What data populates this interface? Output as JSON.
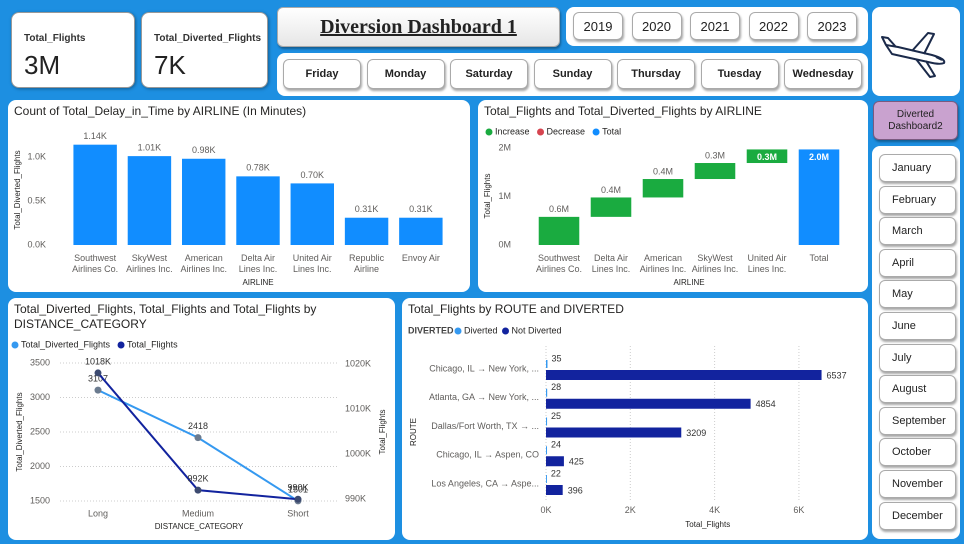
{
  "cards": [
    {
      "label": "Total_Flights",
      "value": "3M"
    },
    {
      "label": "Total_Diverted_Flights",
      "value": "7K"
    }
  ],
  "header": {
    "title": "Diversion Dashboard 1"
  },
  "years": [
    "2019",
    "2020",
    "2021",
    "2022",
    "2023"
  ],
  "weekdays": [
    "Friday",
    "Monday",
    "Saturday",
    "Sunday",
    "Thursday",
    "Tuesday",
    "Wednesday"
  ],
  "nav_button": "Diverted Dashboard2",
  "months": [
    "January",
    "February",
    "March",
    "April",
    "May",
    "June",
    "July",
    "August",
    "September",
    "October",
    "November",
    "December"
  ],
  "chart_data": [
    {
      "type": "bar",
      "title": "Count of Total_Delay_in_Time by AIRLINE (In Minutes)",
      "x_label": "AIRLINE",
      "y_label": "Total_Diverted_Flights",
      "categories": [
        "Southwest Airlines Co.",
        "SkyWest Airlines Inc.",
        "American Airlines Inc.",
        "Delta Air Lines Inc.",
        "United Air Lines Inc.",
        "Republic Airline",
        "Envoy Air"
      ],
      "values": [
        1140,
        1010,
        980,
        780,
        700,
        310,
        310
      ],
      "value_labels": [
        "1.14K",
        "1.01K",
        "0.98K",
        "0.78K",
        "0.70K",
        "0.31K",
        "0.31K"
      ],
      "color": "#118dff",
      "ylim": [
        0,
        1200
      ],
      "yticks": [
        {
          "value": 0,
          "label": "0.0K"
        },
        {
          "value": 500,
          "label": "0.5K"
        },
        {
          "value": 1000,
          "label": "1.0K"
        }
      ],
      "grid": false
    },
    {
      "type": "waterfall",
      "title": "Total_Flights and Total_Diverted_Flights by AIRLINE",
      "x_label": "AIRLINE",
      "y_label": "Total_Flights",
      "legend": [
        {
          "name": "Increase",
          "color": "#1aab40"
        },
        {
          "name": "Decrease",
          "color": "#d64550"
        },
        {
          "name": "Total",
          "color": "#118dff"
        }
      ],
      "categories": [
        "Southwest Airlines Co.",
        "Delta Air Lines Inc.",
        "American Airlines Inc.",
        "SkyWest Airlines Inc.",
        "United Air Lines Inc.",
        "Total"
      ],
      "values": [
        580000,
        400000,
        380000,
        330000,
        280000,
        1970000
      ],
      "value_labels": [
        "0.6M",
        "0.4M",
        "0.4M",
        "0.3M",
        "0.3M",
        "2.0M"
      ],
      "ylim": [
        0,
        2150000
      ],
      "yticks": [
        {
          "value": 0,
          "label": "0M"
        },
        {
          "value": 1000000,
          "label": "1M"
        },
        {
          "value": 2000000,
          "label": "2M"
        }
      ],
      "grid": false
    },
    {
      "type": "line",
      "title": "Total_Diverted_Flights, Total_Flights and Total_Flights by DISTANCE_CATEGORY",
      "x_label": "DISTANCE_CATEGORY",
      "y_label": "Total_Diverted_Flights",
      "y2_label": "Total_Flights",
      "categories": [
        "Long",
        "Medium",
        "Short"
      ],
      "series": [
        {
          "name": "Total_Diverted_Flights",
          "color": "#3599f0",
          "values": [
            3107,
            2418,
            1501
          ]
        },
        {
          "name": "Total_Flights",
          "color": "#12239e",
          "axis": "y2",
          "values": [
            1018000,
            992000,
            990000
          ],
          "value_labels": [
            "1018K",
            "992K",
            "990K"
          ]
        }
      ],
      "ylim": [
        1500,
        3500
      ],
      "yticks": [
        1500,
        2000,
        2500,
        3000,
        3500
      ],
      "y2lim": [
        989600,
        1020200
      ],
      "y2ticks": [
        {
          "value": 990000,
          "label": "990K"
        },
        {
          "value": 1000000,
          "label": "1000K"
        },
        {
          "value": 1010000,
          "label": "1010K"
        },
        {
          "value": 1020000,
          "label": "1020K"
        }
      ],
      "grid": true
    },
    {
      "type": "hbar",
      "title": "Total_Flights by ROUTE and DIVERTED",
      "legend_title": "DIVERTED",
      "x_label": "Total_Flights",
      "y_label": "ROUTE",
      "categories": [
        "Chicago, IL → New York, ...",
        "Atlanta, GA → New York, ...",
        "Dallas/Fort Worth, TX → ...",
        "Chicago, IL → Aspen, CO",
        "Los Angeles, CA → Aspe..."
      ],
      "series": [
        {
          "name": "Diverted",
          "color": "#3599f0",
          "values": [
            35,
            28,
            25,
            24,
            22
          ]
        },
        {
          "name": "Not Diverted",
          "color": "#12239e",
          "values": [
            6537,
            4854,
            3209,
            425,
            396
          ]
        }
      ],
      "xlim": [
        0,
        7200
      ],
      "xticks": [
        {
          "value": 0,
          "label": "0K"
        },
        {
          "value": 2000,
          "label": "2K"
        },
        {
          "value": 4000,
          "label": "4K"
        },
        {
          "value": 6000,
          "label": "6K"
        }
      ],
      "grid": true
    }
  ]
}
